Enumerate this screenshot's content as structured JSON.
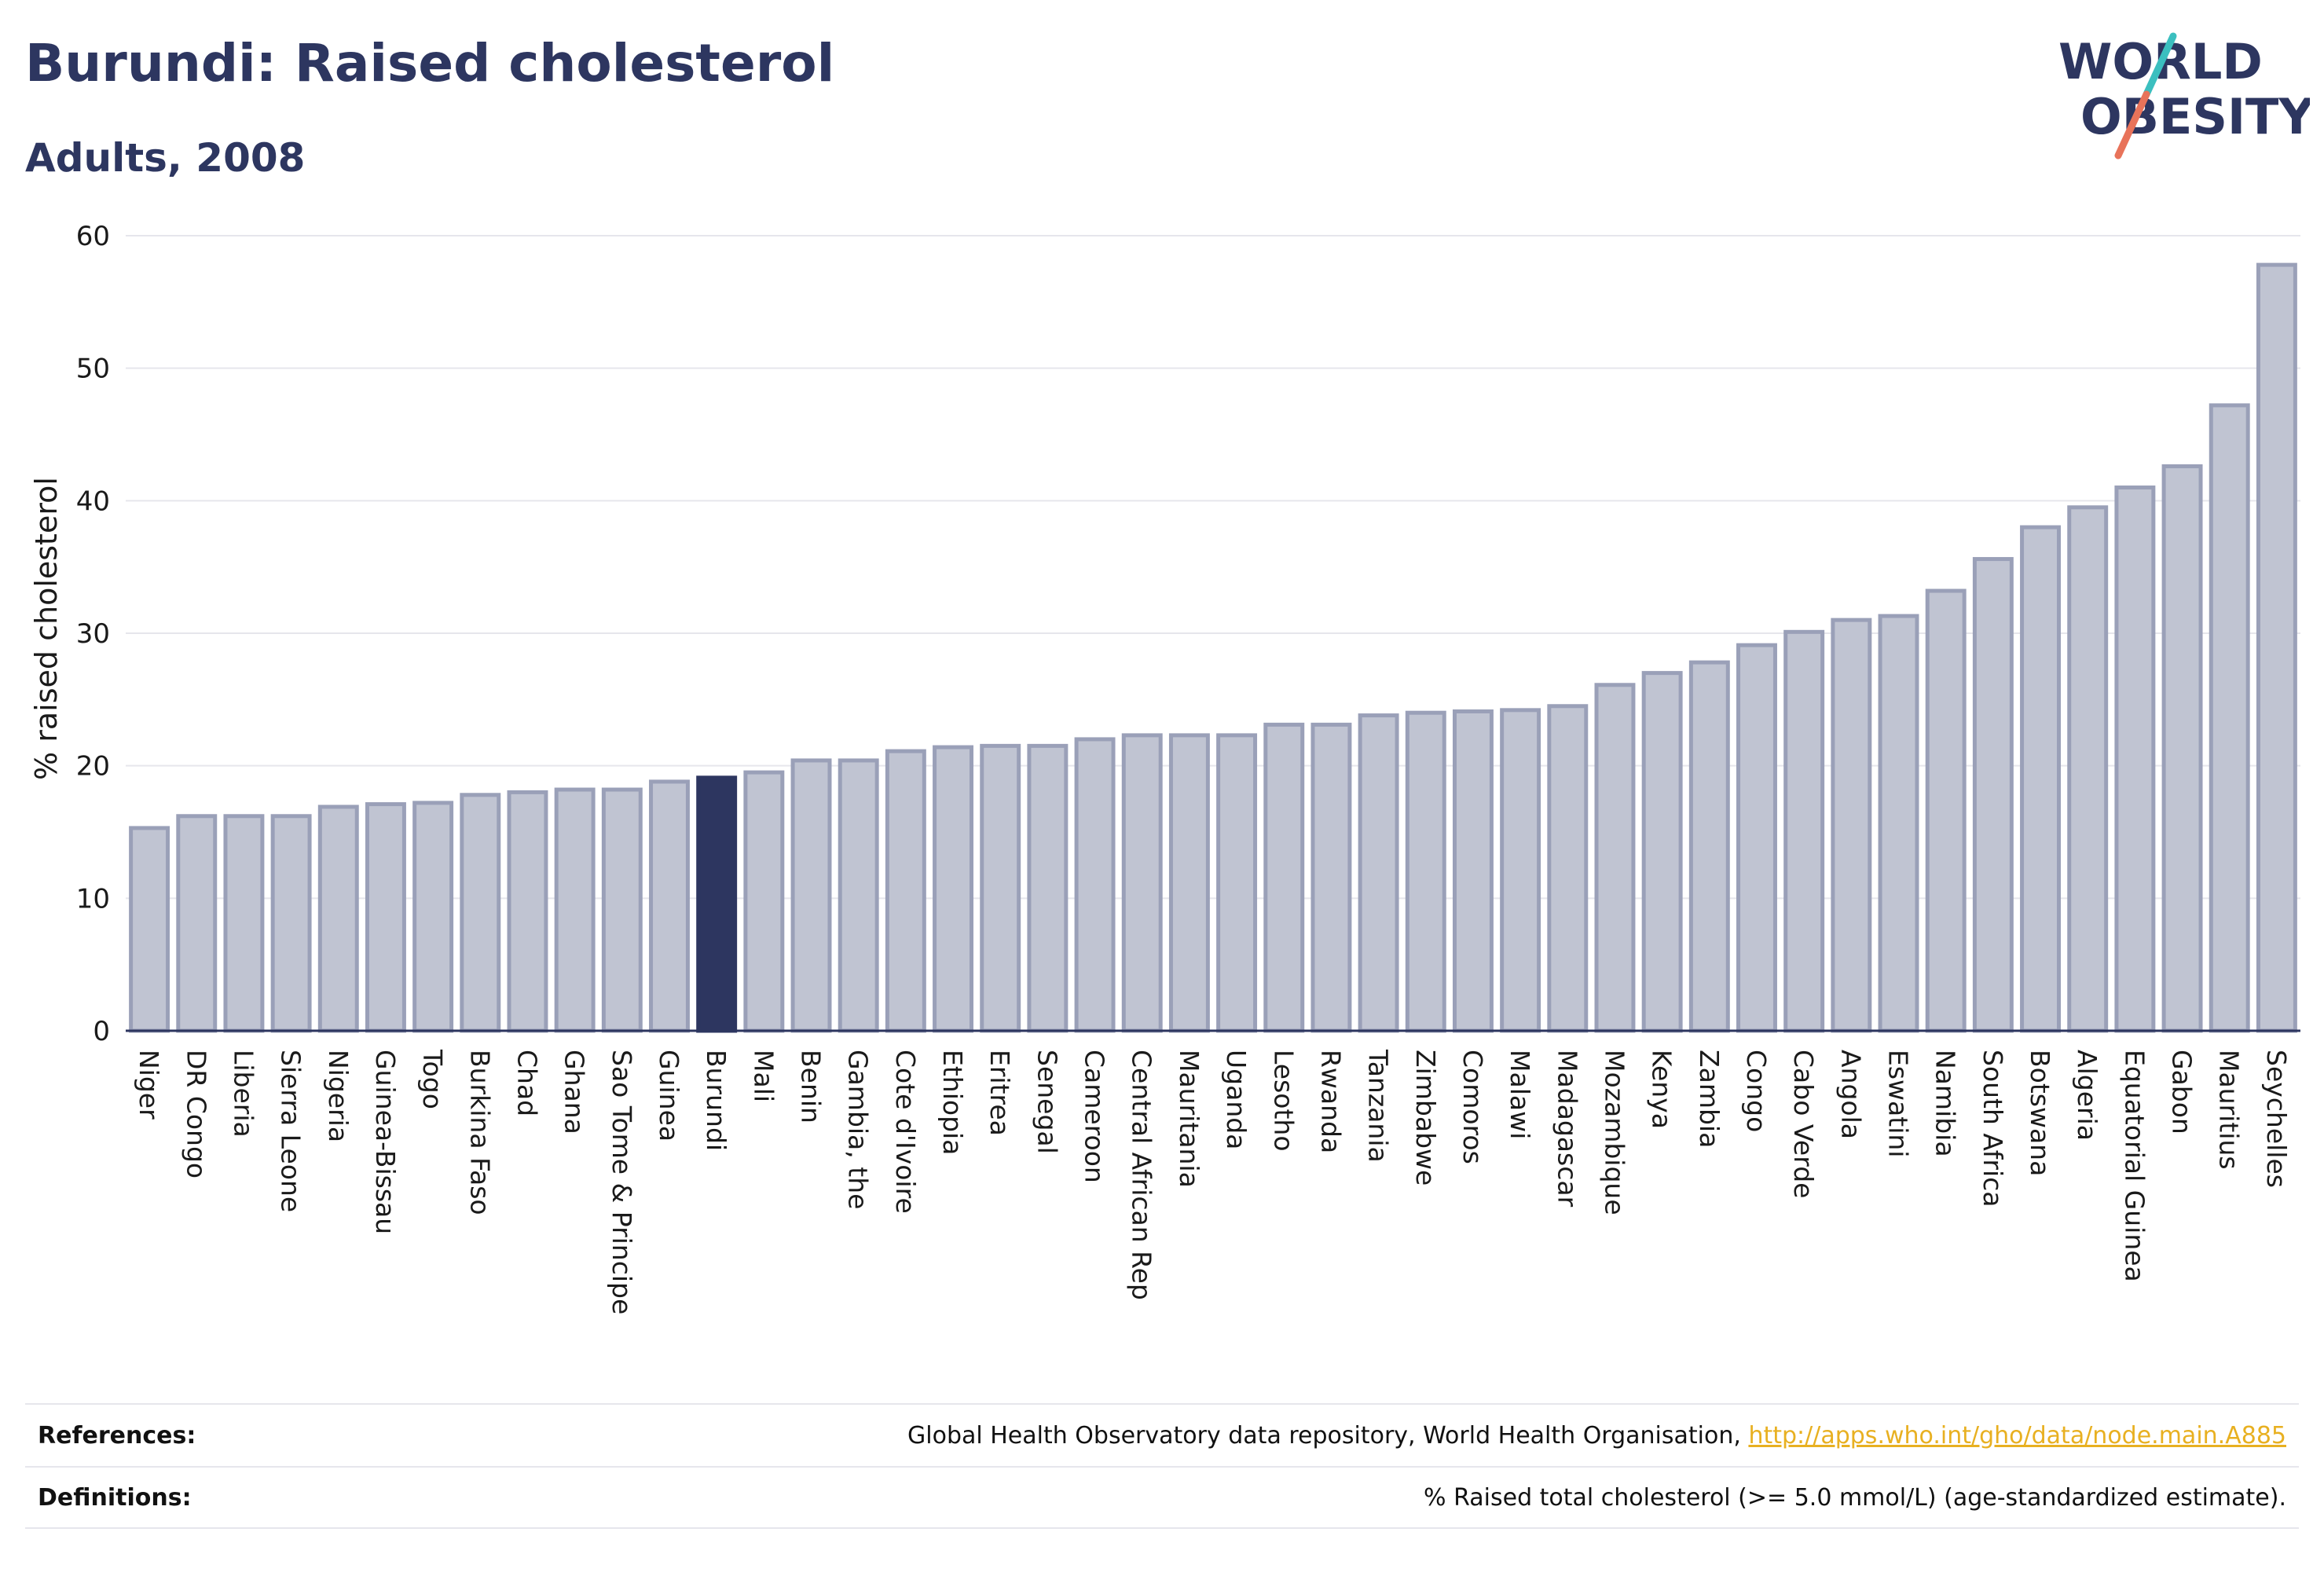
{
  "header": {
    "title": "Burundi: Raised cholesterol",
    "subtitle": "Adults, 2008"
  },
  "logo": {
    "line1": "WORLD",
    "line2": "OBESITY",
    "text_color": "#2d3660",
    "slash_top_color": "#3bbfbf",
    "slash_bottom_color": "#e8735a"
  },
  "colors": {
    "bar_fill": "#c0c4d2",
    "bar_stroke": "#9aa0b8",
    "highlight_fill": "#2d3660",
    "grid": "#e6e6ec",
    "axis": "#2d3660"
  },
  "chart_data": {
    "type": "bar",
    "ylabel": "% raised cholesterol",
    "xlabel": "",
    "ylim": [
      0,
      60
    ],
    "yticks": [
      0,
      10,
      20,
      30,
      40,
      50,
      60
    ],
    "grid": true,
    "highlight": "Burundi",
    "categories": [
      "Niger",
      "DR Congo",
      "Liberia",
      "Sierra Leone",
      "Nigeria",
      "Guinea-Bissau",
      "Togo",
      "Burkina Faso",
      "Chad",
      "Ghana",
      "Sao Tome & Principe",
      "Guinea",
      "Burundi",
      "Mali",
      "Benin",
      "Gambia, the",
      "Cote d'Ivoire",
      "Ethiopia",
      "Eritrea",
      "Senegal",
      "Cameroon",
      "Central African Rep",
      "Mauritania",
      "Uganda",
      "Lesotho",
      "Rwanda",
      "Tanzania",
      "Zimbabwe",
      "Comoros",
      "Malawi",
      "Madagascar",
      "Mozambique",
      "Kenya",
      "Zambia",
      "Congo",
      "Cabo Verde",
      "Angola",
      "Eswatini",
      "Namibia",
      "South Africa",
      "Botswana",
      "Algeria",
      "Equatorial Guinea",
      "Gabon",
      "Mauritius",
      "Seychelles"
    ],
    "values": [
      15.3,
      16.2,
      16.2,
      16.2,
      16.9,
      17.1,
      17.2,
      17.8,
      18.0,
      18.2,
      18.2,
      18.8,
      19.1,
      19.5,
      20.4,
      20.4,
      21.1,
      21.4,
      21.5,
      21.5,
      22.0,
      22.3,
      22.3,
      22.3,
      23.1,
      23.1,
      23.8,
      24.0,
      24.1,
      24.2,
      24.5,
      26.1,
      27.0,
      27.8,
      29.1,
      30.1,
      31.0,
      31.3,
      33.2,
      35.6,
      38.0,
      39.5,
      41.0,
      42.6,
      47.2,
      57.8
    ]
  },
  "footer": {
    "references_label": "References:",
    "references_text": "Global Health Observatory data repository, World Health Organisation, ",
    "references_link": "http://apps.who.int/gho/data/node.main.A885",
    "definitions_label": "Definitions:",
    "definitions_text": "% Raised total cholesterol (>= 5.0 mmol/L) (age-standardized estimate)."
  }
}
